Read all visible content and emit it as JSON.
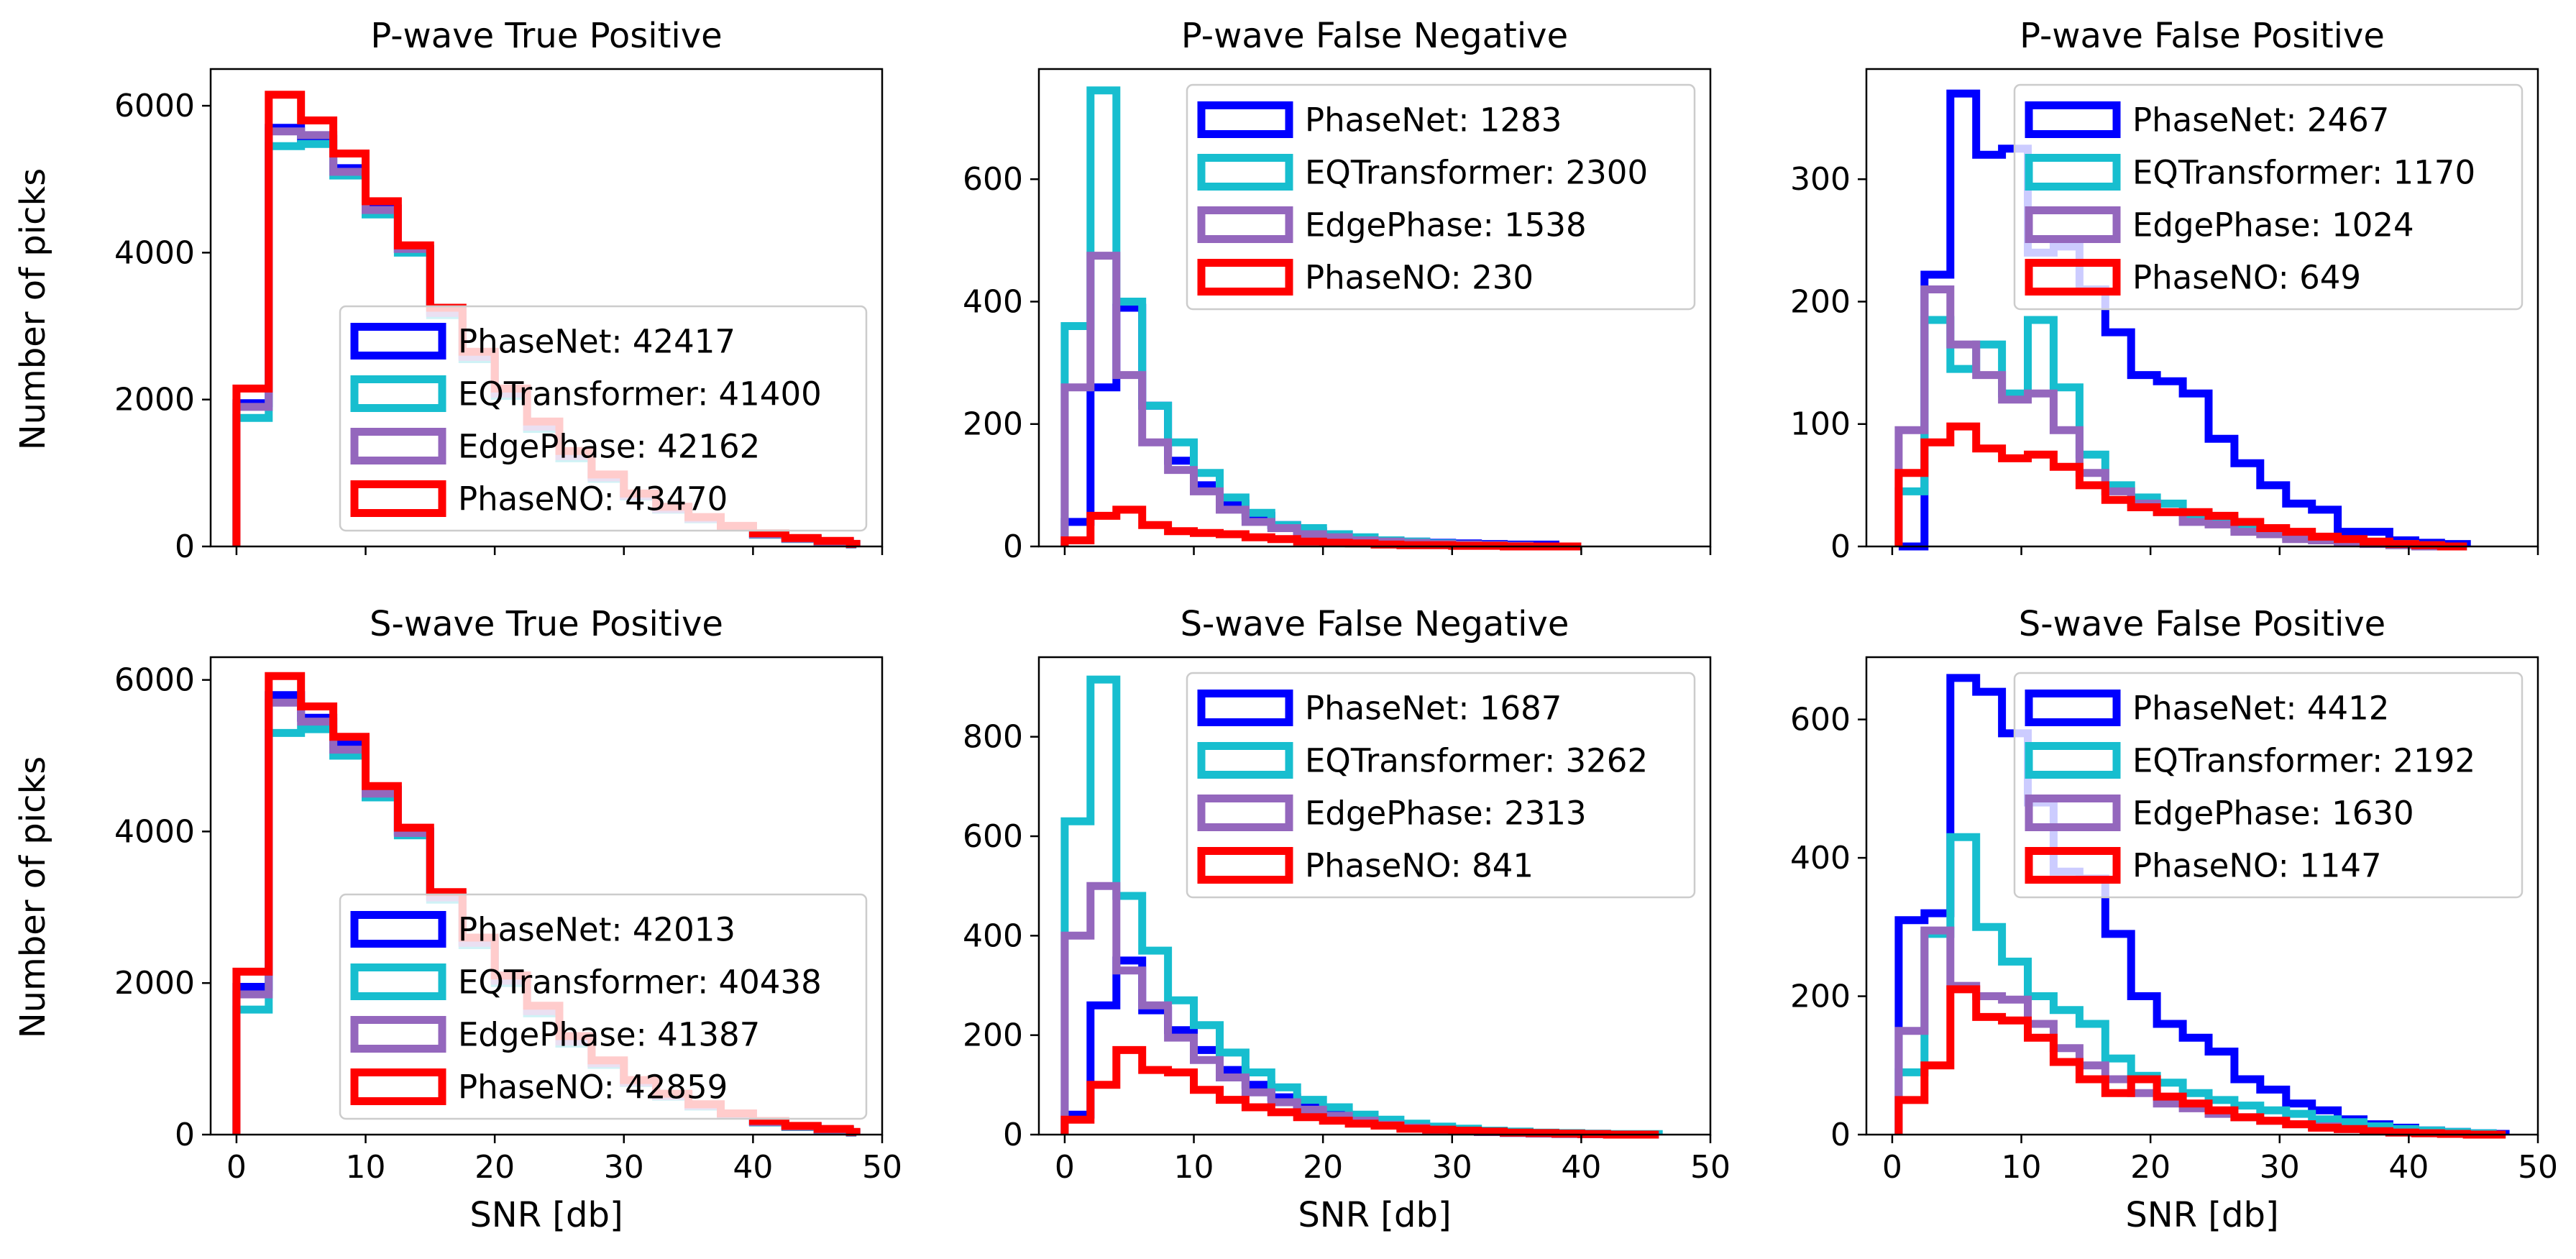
{
  "figure": {
    "y_axis_label": "Number of picks",
    "x_axis_label": "SNR [db]",
    "colors": {
      "PhaseNet": "#0000ff",
      "EQTransformer": "#17becf",
      "EdgePhase": "#9467bd",
      "PhaseNO": "#ff0000"
    }
  },
  "chart_data": [
    {
      "type": "step-histogram",
      "title": "P-wave True Positive",
      "xlabel": "",
      "ylabel": "Number of picks",
      "xlim": [
        -2,
        50
      ],
      "ylim": [
        0,
        6500
      ],
      "xticks": [
        0,
        10,
        20,
        30,
        40,
        50
      ],
      "yticks": [
        0,
        2000,
        4000,
        6000
      ],
      "show_xtick_labels": false,
      "legend_loc": "lower-right",
      "bin_edges": [
        0,
        2.5,
        5,
        7.5,
        10,
        12.5,
        15,
        17.5,
        20,
        22.5,
        25,
        27.5,
        30,
        32.5,
        35,
        37.5,
        40,
        42.5,
        45,
        47.5,
        48
      ],
      "series": [
        {
          "name": "PhaseNet",
          "label": "PhaseNet: 42417",
          "values": [
            1950,
            5700,
            5550,
            5150,
            4600,
            4050,
            3200,
            2600,
            2100,
            1650,
            1250,
            950,
            700,
            520,
            390,
            270,
            170,
            110,
            70,
            30
          ]
        },
        {
          "name": "EQTransformer",
          "label": "EQTransformer: 41400",
          "values": [
            1750,
            5450,
            5480,
            5050,
            4520,
            4000,
            3150,
            2550,
            2050,
            1600,
            1200,
            920,
            680,
            500,
            370,
            260,
            160,
            100,
            60,
            25
          ]
        },
        {
          "name": "EdgePhase",
          "label": "EdgePhase: 42162",
          "values": [
            1900,
            5650,
            5600,
            5100,
            4580,
            4050,
            3180,
            2580,
            2080,
            1630,
            1230,
            940,
            690,
            510,
            380,
            265,
            165,
            105,
            65,
            28
          ]
        },
        {
          "name": "PhaseNO",
          "label": "PhaseNO: 43470",
          "values": [
            2150,
            6150,
            5800,
            5350,
            4700,
            4100,
            3250,
            2650,
            2150,
            1700,
            1300,
            980,
            720,
            540,
            400,
            280,
            180,
            115,
            75,
            35
          ]
        }
      ]
    },
    {
      "type": "step-histogram",
      "title": "P-wave False Negative",
      "xlabel": "",
      "ylabel": "",
      "xlim": [
        -2,
        50
      ],
      "ylim": [
        0,
        780
      ],
      "xticks": [
        0,
        10,
        20,
        30,
        40,
        50
      ],
      "yticks": [
        0,
        200,
        400,
        600
      ],
      "show_xtick_labels": false,
      "legend_loc": "upper-right",
      "bin_edges": [
        0,
        2,
        4,
        6,
        8,
        10,
        12,
        14,
        16,
        18,
        20,
        22,
        24,
        26,
        28,
        30,
        32,
        34,
        36,
        38,
        40
      ],
      "series": [
        {
          "name": "PhaseNet",
          "label": "PhaseNet: 1283",
          "values": [
            40,
            260,
            390,
            230,
            140,
            100,
            70,
            50,
            35,
            25,
            20,
            12,
            10,
            8,
            6,
            5,
            4,
            3,
            3,
            0
          ]
        },
        {
          "name": "EQTransformer",
          "label": "EQTransformer: 2300",
          "values": [
            360,
            745,
            400,
            230,
            170,
            120,
            80,
            55,
            35,
            30,
            20,
            15,
            10,
            8,
            5,
            3,
            2,
            1,
            0,
            0
          ]
        },
        {
          "name": "EdgePhase",
          "label": "EdgePhase: 1538",
          "values": [
            260,
            475,
            280,
            170,
            125,
            90,
            60,
            40,
            30,
            20,
            15,
            10,
            8,
            6,
            4,
            3,
            2,
            1,
            0,
            0
          ]
        },
        {
          "name": "PhaseNO",
          "label": "PhaseNO: 230",
          "values": [
            10,
            50,
            60,
            35,
            25,
            22,
            20,
            15,
            12,
            8,
            6,
            5,
            3,
            2,
            2,
            1,
            1,
            0,
            0,
            0
          ]
        }
      ]
    },
    {
      "type": "step-histogram",
      "title": "P-wave False Positive",
      "xlabel": "",
      "ylabel": "",
      "xlim": [
        -2,
        50
      ],
      "ylim": [
        0,
        390
      ],
      "xticks": [
        0,
        10,
        20,
        30,
        40,
        50
      ],
      "yticks": [
        0,
        100,
        200,
        300
      ],
      "show_xtick_labels": false,
      "legend_loc": "upper-right",
      "bin_edges": [
        0.5,
        2.5,
        4.5,
        6.5,
        8.5,
        10.5,
        12.5,
        14.5,
        16.5,
        18.5,
        20.5,
        22.5,
        24.5,
        26.5,
        28.5,
        30.5,
        32.5,
        34.5,
        36.5,
        38.5,
        40.5,
        42.5,
        44.5
      ],
      "series": [
        {
          "name": "PhaseNet",
          "label": "PhaseNet: 2467",
          "values": [
            0,
            222,
            370,
            320,
            325,
            240,
            245,
            210,
            175,
            140,
            135,
            125,
            88,
            68,
            50,
            35,
            30,
            12,
            12,
            5,
            3,
            2
          ]
        },
        {
          "name": "EQTransformer",
          "label": "EQTransformer: 1170",
          "values": [
            45,
            185,
            145,
            165,
            125,
            185,
            130,
            75,
            50,
            40,
            35,
            25,
            22,
            15,
            12,
            8,
            6,
            4,
            3,
            2,
            1,
            0
          ]
        },
        {
          "name": "EdgePhase",
          "label": "EdgePhase: 1024",
          "values": [
            95,
            210,
            165,
            140,
            120,
            125,
            95,
            60,
            45,
            35,
            28,
            20,
            18,
            12,
            10,
            6,
            5,
            3,
            2,
            1,
            0,
            0
          ]
        },
        {
          "name": "PhaseNO",
          "label": "PhaseNO: 649",
          "values": [
            60,
            85,
            98,
            80,
            72,
            75,
            65,
            50,
            38,
            32,
            28,
            28,
            25,
            20,
            15,
            12,
            8,
            6,
            4,
            2,
            1,
            0
          ]
        }
      ]
    },
    {
      "type": "step-histogram",
      "title": "S-wave True Positive",
      "xlabel": "SNR [db]",
      "ylabel": "Number of picks",
      "xlim": [
        -2,
        50
      ],
      "ylim": [
        0,
        6300
      ],
      "xticks": [
        0,
        10,
        20,
        30,
        40,
        50
      ],
      "yticks": [
        0,
        2000,
        4000,
        6000
      ],
      "show_xtick_labels": true,
      "legend_loc": "lower-right",
      "bin_edges": [
        0,
        2.5,
        5,
        7.5,
        10,
        12.5,
        15,
        17.5,
        20,
        22.5,
        25,
        27.5,
        30,
        32.5,
        35,
        37.5,
        40,
        42.5,
        45,
        47.5,
        48
      ],
      "series": [
        {
          "name": "PhaseNet",
          "label": "PhaseNet: 42013",
          "values": [
            1950,
            5800,
            5500,
            5150,
            4550,
            4000,
            3150,
            2550,
            2050,
            1650,
            1250,
            950,
            700,
            520,
            390,
            270,
            170,
            110,
            70,
            30
          ]
        },
        {
          "name": "EQTransformer",
          "label": "EQTransformer: 40438",
          "values": [
            1650,
            5300,
            5350,
            5000,
            4450,
            3950,
            3100,
            2500,
            2000,
            1600,
            1200,
            920,
            680,
            500,
            370,
            260,
            160,
            100,
            60,
            25
          ]
        },
        {
          "name": "EdgePhase",
          "label": "EdgePhase: 41387",
          "values": [
            1850,
            5700,
            5450,
            5080,
            4500,
            3980,
            3130,
            2530,
            2030,
            1630,
            1230,
            940,
            690,
            510,
            380,
            265,
            165,
            105,
            65,
            28
          ]
        },
        {
          "name": "PhaseNO",
          "label": "PhaseNO: 42859",
          "values": [
            2150,
            6050,
            5650,
            5250,
            4600,
            4050,
            3200,
            2600,
            2100,
            1700,
            1300,
            980,
            720,
            540,
            400,
            280,
            180,
            115,
            75,
            35
          ]
        }
      ]
    },
    {
      "type": "step-histogram",
      "title": "S-wave False Negative",
      "xlabel": "SNR [db]",
      "ylabel": "",
      "xlim": [
        -2,
        50
      ],
      "ylim": [
        0,
        960
      ],
      "xticks": [
        0,
        10,
        20,
        30,
        40,
        50
      ],
      "yticks": [
        0,
        200,
        400,
        600,
        800
      ],
      "show_xtick_labels": true,
      "legend_loc": "upper-right",
      "bin_edges": [
        0,
        2,
        4,
        6,
        8,
        10,
        12,
        14,
        16,
        18,
        20,
        22,
        24,
        26,
        28,
        30,
        32,
        34,
        36,
        38,
        40,
        42,
        44,
        46
      ],
      "series": [
        {
          "name": "PhaseNet",
          "label": "PhaseNet: 1687",
          "values": [
            40,
            260,
            350,
            250,
            210,
            170,
            130,
            100,
            75,
            55,
            42,
            30,
            22,
            15,
            10,
            8,
            5,
            4,
            3,
            2,
            1,
            0,
            0
          ]
        },
        {
          "name": "EQTransformer",
          "label": "EQTransformer: 3262",
          "values": [
            630,
            915,
            480,
            370,
            270,
            220,
            165,
            125,
            95,
            70,
            55,
            40,
            30,
            22,
            16,
            12,
            8,
            6,
            4,
            3,
            2,
            1,
            1
          ]
        },
        {
          "name": "EdgePhase",
          "label": "EdgePhase: 2313",
          "values": [
            400,
            500,
            330,
            260,
            195,
            150,
            115,
            85,
            65,
            50,
            38,
            28,
            20,
            14,
            10,
            7,
            5,
            3,
            2,
            1,
            1,
            0,
            0
          ]
        },
        {
          "name": "PhaseNO",
          "label": "PhaseNO: 841",
          "values": [
            30,
            100,
            170,
            130,
            125,
            90,
            70,
            55,
            45,
            35,
            28,
            22,
            18,
            12,
            10,
            8,
            6,
            4,
            3,
            2,
            1,
            0,
            0
          ]
        }
      ]
    },
    {
      "type": "step-histogram",
      "title": "S-wave False Positive",
      "xlabel": "SNR [db]",
      "ylabel": "",
      "xlim": [
        -2,
        50
      ],
      "ylim": [
        0,
        690
      ],
      "xticks": [
        0,
        10,
        20,
        30,
        40,
        50
      ],
      "yticks": [
        0,
        200,
        400,
        600
      ],
      "show_xtick_labels": true,
      "legend_loc": "upper-right",
      "bin_edges": [
        0.5,
        2.5,
        4.5,
        6.5,
        8.5,
        10.5,
        12.5,
        14.5,
        16.5,
        18.5,
        20.5,
        22.5,
        24.5,
        26.5,
        28.5,
        30.5,
        32.5,
        34.5,
        36.5,
        38.5,
        40.5,
        42.5,
        44.5,
        46.5,
        47.5
      ],
      "series": [
        {
          "name": "PhaseNet",
          "label": "PhaseNet: 4412",
          "values": [
            310,
            320,
            660,
            640,
            580,
            480,
            380,
            370,
            290,
            200,
            160,
            140,
            120,
            80,
            65,
            45,
            35,
            22,
            15,
            10,
            6,
            4,
            2,
            1
          ]
        },
        {
          "name": "EQTransformer",
          "label": "EQTransformer: 2192",
          "values": [
            90,
            290,
            430,
            300,
            250,
            200,
            180,
            160,
            110,
            85,
            75,
            60,
            50,
            42,
            35,
            30,
            22,
            18,
            12,
            8,
            6,
            4,
            2,
            0
          ]
        },
        {
          "name": "EdgePhase",
          "label": "EdgePhase: 1630",
          "values": [
            150,
            295,
            215,
            200,
            195,
            160,
            125,
            100,
            80,
            60,
            45,
            38,
            30,
            25,
            20,
            15,
            12,
            8,
            5,
            3,
            2,
            1,
            0,
            0
          ]
        },
        {
          "name": "PhaseNO",
          "label": "PhaseNO: 1147",
          "values": [
            50,
            100,
            210,
            170,
            165,
            140,
            105,
            80,
            60,
            80,
            55,
            45,
            35,
            25,
            20,
            15,
            10,
            8,
            5,
            3,
            2,
            1,
            0,
            0
          ]
        }
      ]
    }
  ]
}
